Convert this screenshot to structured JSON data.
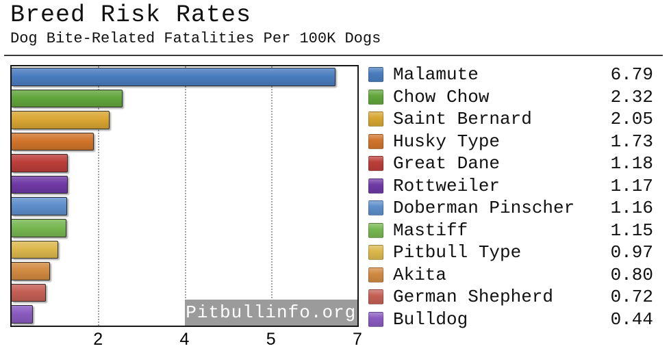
{
  "header": {
    "title": "Breed Risk Rates",
    "subtitle": "Dog Bite-Related Fatalities Per 100K Dogs"
  },
  "watermark": "Pitbullinfo.org",
  "chart_data": {
    "type": "bar",
    "orientation": "horizontal",
    "title": "Breed Risk Rates",
    "subtitle": "Dog Bite-Related Fatalities Per 100K Dogs",
    "xlabel": "",
    "ylabel": "",
    "xlim": [
      0,
      7.25
    ],
    "grid": "dotted-vertical",
    "legend_position": "right",
    "categories": [
      "Malamute",
      "Chow Chow",
      "Saint Bernard",
      "Husky Type",
      "Great Dane",
      "Rottweiler",
      "Doberman Pinscher",
      "Mastiff",
      "Pitbull Type",
      "Akita",
      "German Shepherd",
      "Bulldog"
    ],
    "values": [
      6.79,
      2.32,
      2.05,
      1.73,
      1.18,
      1.17,
      1.16,
      1.15,
      0.97,
      0.8,
      0.72,
      0.44
    ],
    "colors": [
      "#4a7dbf",
      "#62a63c",
      "#d8a632",
      "#d1752b",
      "#bb3e3a",
      "#6f3aa5",
      "#5e8ecb",
      "#77b751",
      "#dcb84d",
      "#d18a42",
      "#c45f55",
      "#8a5bc0"
    ],
    "x_ticks": [
      {
        "label": "2",
        "position_pct": 25,
        "gridline": true
      },
      {
        "label": "4",
        "position_pct": 50,
        "gridline": true
      },
      {
        "label": "5",
        "position_pct": 75,
        "gridline": true
      },
      {
        "label": "7",
        "position_pct": 100,
        "gridline": false
      }
    ],
    "watermark_bg": "#9b9b9b",
    "grid_color": "#a4a4a4",
    "frame_color": "#161616"
  }
}
